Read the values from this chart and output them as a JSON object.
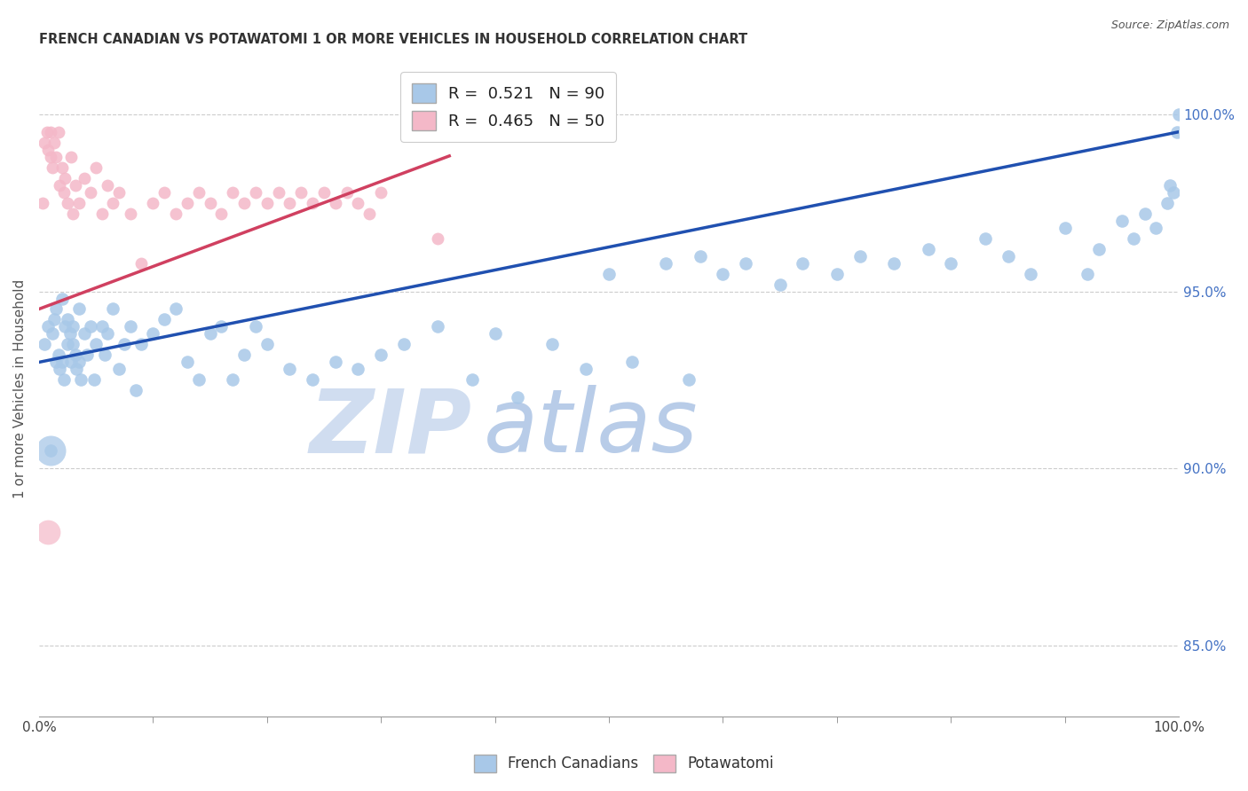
{
  "title": "FRENCH CANADIAN VS POTAWATOMI 1 OR MORE VEHICLES IN HOUSEHOLD CORRELATION CHART",
  "source": "Source: ZipAtlas.com",
  "ylabel": "1 or more Vehicles in Household",
  "xlim": [
    0.0,
    100.0
  ],
  "ylim": [
    83.0,
    101.5
  ],
  "yticks": [
    85.0,
    90.0,
    95.0,
    100.0
  ],
  "xtick_positions": [
    0.0,
    100.0
  ],
  "xtick_labels": [
    "0.0%",
    "100.0%"
  ],
  "legend_blue_R": "0.521",
  "legend_blue_N": "90",
  "legend_pink_R": "0.465",
  "legend_pink_N": "50",
  "blue_color": "#a8c8e8",
  "pink_color": "#f4b8c8",
  "blue_edge_color": "#6090c0",
  "pink_edge_color": "#d06080",
  "blue_line_color": "#2050b0",
  "pink_line_color": "#d04060",
  "watermark_zip": "ZIP",
  "watermark_atlas": "atlas",
  "watermark_color_zip": "#d0ddf0",
  "watermark_color_atlas": "#b8cce8",
  "blue_x": [
    0.5,
    0.8,
    1.0,
    1.2,
    1.3,
    1.5,
    1.5,
    1.7,
    1.8,
    2.0,
    2.0,
    2.2,
    2.3,
    2.5,
    2.5,
    2.7,
    2.8,
    3.0,
    3.0,
    3.2,
    3.3,
    3.5,
    3.5,
    3.7,
    4.0,
    4.2,
    4.5,
    4.8,
    5.0,
    5.5,
    5.8,
    6.0,
    6.5,
    7.0,
    7.5,
    8.0,
    8.5,
    9.0,
    10.0,
    11.0,
    12.0,
    13.0,
    14.0,
    15.0,
    16.0,
    17.0,
    18.0,
    19.0,
    20.0,
    22.0,
    24.0,
    26.0,
    28.0,
    30.0,
    32.0,
    35.0,
    38.0,
    40.0,
    42.0,
    45.0,
    48.0,
    50.0,
    52.0,
    55.0,
    57.0,
    58.0,
    60.0,
    62.0,
    65.0,
    67.0,
    70.0,
    72.0,
    75.0,
    78.0,
    80.0,
    83.0,
    85.0,
    87.0,
    90.0,
    92.0,
    93.0,
    95.0,
    96.0,
    97.0,
    98.0,
    99.0,
    99.2,
    99.5,
    99.8,
    100.0
  ],
  "blue_y": [
    93.5,
    94.0,
    90.5,
    93.8,
    94.2,
    93.0,
    94.5,
    93.2,
    92.8,
    93.0,
    94.8,
    92.5,
    94.0,
    93.5,
    94.2,
    93.8,
    93.0,
    94.0,
    93.5,
    93.2,
    92.8,
    94.5,
    93.0,
    92.5,
    93.8,
    93.2,
    94.0,
    92.5,
    93.5,
    94.0,
    93.2,
    93.8,
    94.5,
    92.8,
    93.5,
    94.0,
    92.2,
    93.5,
    93.8,
    94.2,
    94.5,
    93.0,
    92.5,
    93.8,
    94.0,
    92.5,
    93.2,
    94.0,
    93.5,
    92.8,
    92.5,
    93.0,
    92.8,
    93.2,
    93.5,
    94.0,
    92.5,
    93.8,
    92.0,
    93.5,
    92.8,
    95.5,
    93.0,
    95.8,
    92.5,
    96.0,
    95.5,
    95.8,
    95.2,
    95.8,
    95.5,
    96.0,
    95.8,
    96.2,
    95.8,
    96.5,
    96.0,
    95.5,
    96.8,
    95.5,
    96.2,
    97.0,
    96.5,
    97.2,
    96.8,
    97.5,
    98.0,
    97.8,
    99.5,
    100.0
  ],
  "pink_x": [
    0.3,
    0.5,
    0.7,
    0.8,
    1.0,
    1.0,
    1.2,
    1.3,
    1.5,
    1.7,
    1.8,
    2.0,
    2.2,
    2.3,
    2.5,
    2.8,
    3.0,
    3.2,
    3.5,
    4.0,
    4.5,
    5.0,
    5.5,
    6.0,
    6.5,
    7.0,
    8.0,
    9.0,
    10.0,
    11.0,
    12.0,
    13.0,
    14.0,
    15.0,
    16.0,
    17.0,
    18.0,
    19.0,
    20.0,
    21.0,
    22.0,
    23.0,
    24.0,
    25.0,
    26.0,
    27.0,
    28.0,
    29.0,
    30.0,
    35.0
  ],
  "pink_y": [
    97.5,
    99.2,
    99.5,
    99.0,
    98.8,
    99.5,
    98.5,
    99.2,
    98.8,
    99.5,
    98.0,
    98.5,
    97.8,
    98.2,
    97.5,
    98.8,
    97.2,
    98.0,
    97.5,
    98.2,
    97.8,
    98.5,
    97.2,
    98.0,
    97.5,
    97.8,
    97.2,
    95.8,
    97.5,
    97.8,
    97.2,
    97.5,
    97.8,
    97.5,
    97.2,
    97.8,
    97.5,
    97.8,
    97.5,
    97.8,
    97.5,
    97.8,
    97.5,
    97.8,
    97.5,
    97.8,
    97.5,
    97.2,
    97.8,
    96.5
  ],
  "big_blue_x": 1.0,
  "big_blue_y": 90.5,
  "big_pink_x": 0.8,
  "big_pink_y": 88.2
}
